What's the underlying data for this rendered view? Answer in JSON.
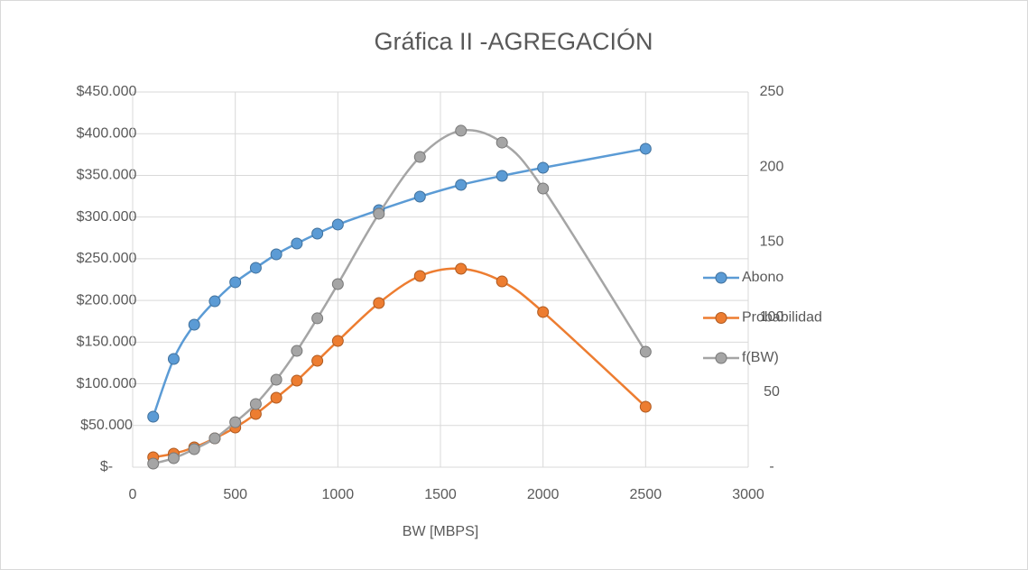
{
  "chart_data": {
    "type": "line",
    "title": "Gráfica II -AGREGACIÓN",
    "xlabel": "BW [MBPS]",
    "x": [
      100,
      200,
      300,
      400,
      500,
      600,
      700,
      800,
      900,
      1000,
      1200,
      1400,
      1600,
      1800,
      2000,
      2500
    ],
    "series": [
      {
        "name": "Abono",
        "color": "#5b9bd5",
        "axis": "y",
        "values": [
          60600,
          129800,
          170900,
          199000,
          221800,
          239100,
          255300,
          268300,
          280200,
          291000,
          308300,
          324500,
          338600,
          349400,
          359100,
          381900
        ]
      },
      {
        "name": "Probabilidad",
        "color": "#ed7d31",
        "axis": "y",
        "values": [
          11900,
          16200,
          23800,
          34600,
          47600,
          63800,
          83300,
          103800,
          127600,
          151400,
          196900,
          229300,
          238000,
          222800,
          186100,
          72500
        ]
      },
      {
        "name": "f(BW)",
        "color": "#a5a5a5",
        "axis": "y2",
        "values": [
          2.4,
          6.0,
          12.0,
          19.2,
          30.0,
          42.1,
          58.3,
          77.5,
          99.2,
          122.0,
          168.9,
          206.7,
          224.2,
          216.3,
          185.7,
          76.9
        ]
      }
    ],
    "xlim": [
      0,
      3000
    ],
    "xticks": [
      0,
      500,
      1000,
      1500,
      2000,
      2500,
      3000
    ],
    "ylim": [
      0,
      450000
    ],
    "yticks": [
      {
        "value": 0,
        "label": "$-"
      },
      {
        "value": 50000,
        "label": "$50.000"
      },
      {
        "value": 100000,
        "label": "$100.000"
      },
      {
        "value": 150000,
        "label": "$150.000"
      },
      {
        "value": 200000,
        "label": "$200.000"
      },
      {
        "value": 250000,
        "label": "$250.000"
      },
      {
        "value": 300000,
        "label": "$300.000"
      },
      {
        "value": 350000,
        "label": "$350.000"
      },
      {
        "value": 400000,
        "label": "$400.000"
      },
      {
        "value": 450000,
        "label": "$450.000"
      }
    ],
    "y2lim": [
      0,
      250
    ],
    "y2ticks": [
      {
        "value": 0,
        "label": "-"
      },
      50,
      100,
      150,
      200,
      250
    ],
    "grid": true,
    "legend": "right",
    "smooth": true
  }
}
